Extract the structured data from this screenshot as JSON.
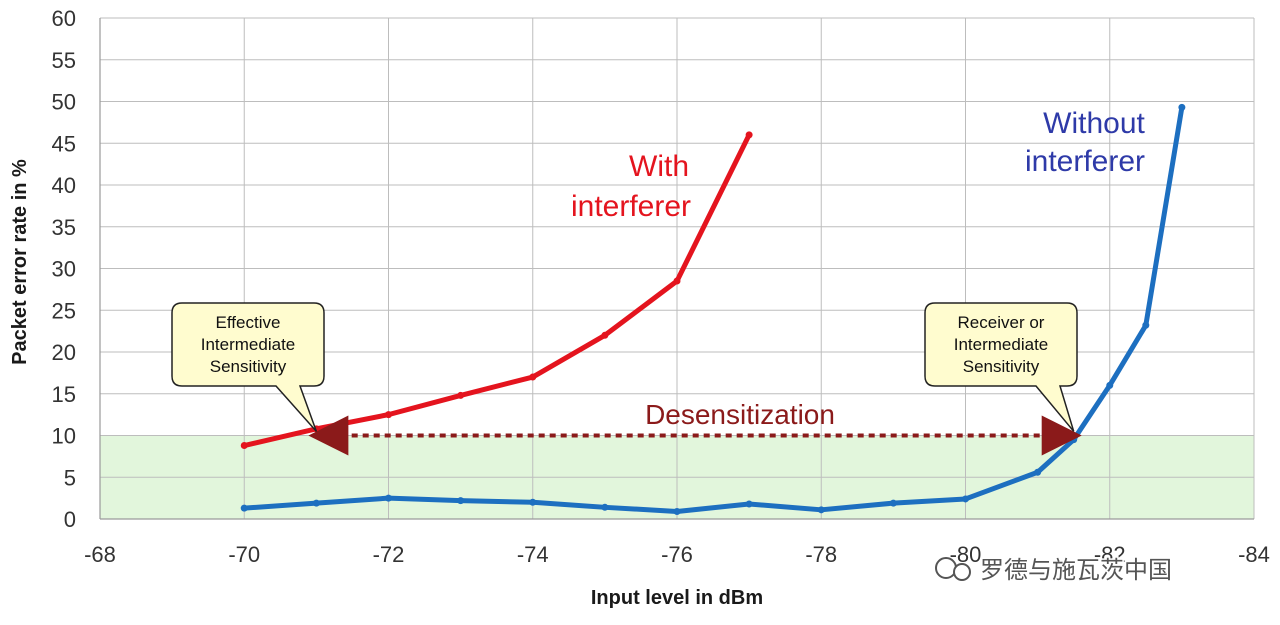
{
  "chart_data": {
    "type": "line",
    "xlabel": "Input level in dBm",
    "ylabel": "Packet error rate in %",
    "xlim": [
      -68,
      -84
    ],
    "ylim": [
      0,
      60
    ],
    "x_ticks": [
      -68,
      -70,
      -72,
      -74,
      -76,
      -78,
      -80,
      -82,
      -84
    ],
    "y_ticks": [
      0,
      5,
      10,
      15,
      20,
      25,
      30,
      35,
      40,
      45,
      50,
      55,
      60
    ],
    "grid": true,
    "shaded_band": {
      "y_from": 0,
      "y_to": 10,
      "color": "#e2f6dc"
    },
    "series": [
      {
        "name": "With interferer",
        "color": "#e4141e",
        "x": [
          -70,
          -71,
          -72,
          -73,
          -74,
          -75,
          -76,
          -77
        ],
        "y": [
          8.8,
          10.8,
          12.5,
          14.8,
          17.0,
          22.0,
          28.5,
          46.0
        ]
      },
      {
        "name": "Without interferer",
        "color": "#1d6fc0",
        "x": [
          -70,
          -71,
          -72,
          -73,
          -74,
          -75,
          -76,
          -77,
          -78,
          -79,
          -80,
          -81,
          -81.5,
          -82,
          -82.5,
          -83
        ],
        "y": [
          1.3,
          1.9,
          2.5,
          2.2,
          2.0,
          1.4,
          0.9,
          1.8,
          1.1,
          1.9,
          2.4,
          5.6,
          9.5,
          16.0,
          23.2,
          49.3
        ]
      }
    ],
    "annotations": {
      "with_label": [
        "With",
        "interferer"
      ],
      "without_label": [
        "Without",
        "interferer"
      ],
      "desensitization": "Desensitization",
      "desens_arrow": {
        "from_x": -81.5,
        "to_x": -71,
        "y": 10
      },
      "callout_left": {
        "lines": [
          "Effective",
          "Intermediate",
          "Sensitivity"
        ],
        "point_x": -71,
        "point_y": 10.5
      },
      "callout_right": {
        "lines": [
          "Receiver or",
          "Intermediate",
          "Sensitivity"
        ],
        "point_x": -81.5,
        "point_y": 10.5
      }
    }
  },
  "watermark": "罗德与施瓦茨中国"
}
